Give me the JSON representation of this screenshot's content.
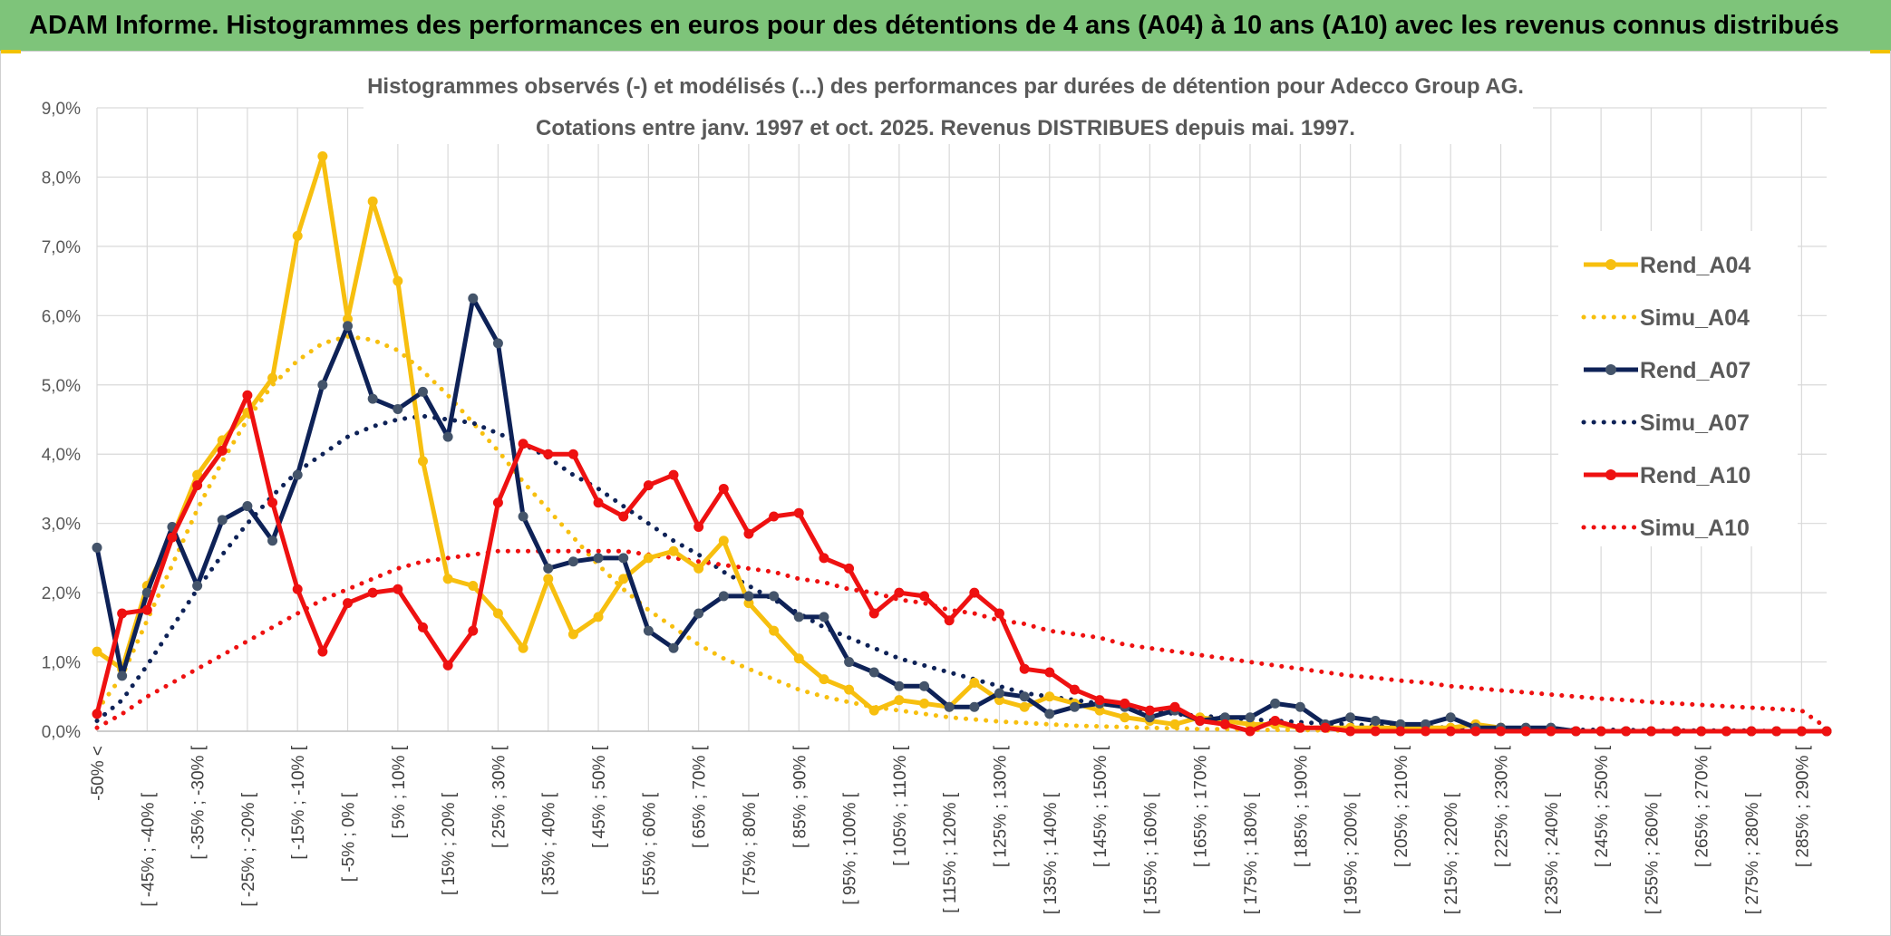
{
  "banner": {
    "title": "ADAM Informe. Histogrammes des performances en euros pour des détentions de 4 ans (A04) à 10 ans (A10) avec les revenus connus distribués"
  },
  "colors": {
    "banner_bg": "#7ec47a",
    "A04": "#f7bf0f",
    "A07": "#0e2257",
    "A10": "#ee1111",
    "grid": "#d9d9d9"
  },
  "chart_data": {
    "type": "line",
    "title": [
      "Histogrammes observés (-) et modélisés (...) des performances par durées de détention pour Adecco Group AG.",
      "Cotations entre janv. 1997 et oct. 2025. Revenus DISTRIBUES depuis mai. 1997."
    ],
    "xlabel": "",
    "ylabel": "",
    "ylim": [
      0,
      9
    ],
    "y_ticks": [
      "0,0%",
      "1,0%",
      "2,0%",
      "3,0%",
      "4,0%",
      "5,0%",
      "6,0%",
      "7,0%",
      "8,0%",
      "9,0%"
    ],
    "grid": true,
    "legend_position": "right",
    "categories": [
      "-50% <",
      "[ -50% ; -45% [",
      "[ -45% ; -40% [",
      "[ -40% ; -35% [",
      "[ -35% ; -30% [",
      "[ -30% ; -25% [",
      "[ -25% ; -20% [",
      "[ -20% ; -15% [",
      "[ -15% ; -10% [",
      "[ -10% ; -5% [",
      "[ -5% ; 0% [",
      "[ 0% ; 5% [",
      "[ 5% ; 10% [",
      "[ 10% ; 15% [",
      "[ 15% ; 20% [",
      "[ 20% ; 25% [",
      "[ 25% ; 30% [",
      "[ 30% ; 35% [",
      "[ 35% ; 40% [",
      "[ 40% ; 45% [",
      "[ 45% ; 50% [",
      "[ 50% ; 55% [",
      "[ 55% ; 60% [",
      "[ 60% ; 65% [",
      "[ 65% ; 70% [",
      "[ 70% ; 75% [",
      "[ 75% ; 80% [",
      "[ 80% ; 85% [",
      "[ 85% ; 90% [",
      "[ 90% ; 95% [",
      "[ 95% ; 100% [",
      "[ 100% ; 105% [",
      "[ 105% ; 110% [",
      "[ 110% ; 115% [",
      "[ 115% ; 120% [",
      "[ 120% ; 125% [",
      "[ 125% ; 130% [",
      "[ 130% ; 135% [",
      "[ 135% ; 140% [",
      "[ 140% ; 145% [",
      "[ 145% ; 150% [",
      "[ 150% ; 155% [",
      "[ 155% ; 160% [",
      "[ 160% ; 165% [",
      "[ 165% ; 170% [",
      "[ 170% ; 175% [",
      "[ 175% ; 180% [",
      "[ 180% ; 185% [",
      "[ 185% ; 190% [",
      "[ 190% ; 195% [",
      "[ 195% ; 200% [",
      "[ 200% ; 205% [",
      "[ 205% ; 210% [",
      "[ 210% ; 215% [",
      "[ 215% ; 220% [",
      "[ 220% ; 225% [",
      "[ 225% ; 230% [",
      "[ 230% ; 235% [",
      "[ 235% ; 240% [",
      "[ 240% ; 245% [",
      "[ 245% ; 250% [",
      "[ 250% ; 255% [",
      "[ 255% ; 260% [",
      "[ 260% ; 265% [",
      "[ 265% ; 270% [",
      "[ 270% ; 275% [",
      "[ 275% ; 280% [",
      "[ 280% ; 285% [",
      "[ 285% ; 290% [",
      "[ 290% ; 295% ["
    ],
    "shown_x_labels": [
      "-50% <",
      "[ -45% ; -40% [",
      "[ -35% ; -30% [",
      "[ -25% ; -20% [",
      "[ -15% ; -10% [",
      "[ -5% ; 0% [",
      "[ 5% ; 10% [",
      "[ 15% ; 20% [",
      "[ 25% ; 30% [",
      "[ 35% ; 40% [",
      "[ 45% ; 50% [",
      "[ 55% ; 60% [",
      "[ 65% ; 70% [",
      "[ 75% ; 80% [",
      "[ 85% ; 90% [",
      "[ 95% ; 100% [",
      "[ 105% ; 110% [",
      "[ 115% ; 120% [",
      "[ 125% ; 130% [",
      "[ 135% ; 140% [",
      "[ 145% ; 150% [",
      "[ 155% ; 160% [",
      "[ 165% ; 170% [",
      "[ 175% ; 180% [",
      "[ 185% ; 190% [",
      "[ 195% ; 200% [",
      "[ 205% ; 210% [",
      "[ 215% ; 220% [",
      "[ 225% ; 230% [",
      "[ 235% ; 240% [",
      "[ 245% ; 250% [",
      "[ 255% ; 260% [",
      "[ 265% ; 270% [",
      "[ 275% ; 280% [",
      "[ 285% ; 290% ["
    ],
    "series": [
      {
        "name": "Rend_A04",
        "style": "solid",
        "color": "#f7bf0f",
        "values": [
          1.15,
          0.9,
          2.1,
          2.8,
          3.7,
          4.2,
          4.6,
          5.1,
          7.15,
          8.3,
          5.95,
          7.65,
          6.5,
          3.9,
          2.2,
          2.1,
          1.7,
          1.2,
          2.2,
          1.4,
          1.65,
          2.2,
          2.5,
          2.6,
          2.35,
          2.75,
          1.85,
          1.45,
          1.05,
          0.75,
          0.6,
          0.3,
          0.45,
          0.4,
          0.35,
          0.7,
          0.45,
          0.35,
          0.5,
          0.4,
          0.3,
          0.2,
          0.15,
          0.1,
          0.2,
          0.15,
          0.1,
          0.1,
          0.05,
          0.05,
          0.05,
          0.05,
          0.05,
          0.05,
          0.05,
          0.1,
          0.05,
          0.0,
          0.0,
          0.0,
          0.0,
          0.0,
          0.0,
          0.0,
          0.0,
          0.0,
          0.0,
          0.0,
          0.0,
          0.0
        ]
      },
      {
        "name": "Simu_A04",
        "style": "dotted",
        "color": "#f7bf0f",
        "values": [
          0.3,
          0.8,
          1.6,
          2.4,
          3.2,
          3.9,
          4.5,
          5.0,
          5.35,
          5.6,
          5.7,
          5.65,
          5.5,
          5.2,
          4.85,
          4.45,
          4.05,
          3.6,
          3.2,
          2.8,
          2.4,
          2.05,
          1.75,
          1.5,
          1.25,
          1.05,
          0.9,
          0.75,
          0.6,
          0.5,
          0.42,
          0.35,
          0.3,
          0.25,
          0.2,
          0.17,
          0.14,
          0.12,
          0.1,
          0.08,
          0.07,
          0.06,
          0.05,
          0.04,
          0.03,
          0.03,
          0.02,
          0.02,
          0.02,
          0.01,
          0.01,
          0.01,
          0.01,
          0.01,
          0.01,
          0.0,
          0.0,
          0.0,
          0.0,
          0.0,
          0.0,
          0.0,
          0.0,
          0.0,
          0.0,
          0.0,
          0.0,
          0.0,
          0.0,
          0.0
        ]
      },
      {
        "name": "Rend_A07",
        "style": "solid",
        "color": "#0e2257",
        "values": [
          2.65,
          0.8,
          2.0,
          2.95,
          2.1,
          3.05,
          3.25,
          2.75,
          3.7,
          5.0,
          5.85,
          4.8,
          4.65,
          4.9,
          4.25,
          6.25,
          5.6,
          3.1,
          2.35,
          2.45,
          2.5,
          2.5,
          1.45,
          1.2,
          1.7,
          1.95,
          1.95,
          1.95,
          1.65,
          1.65,
          1.0,
          0.85,
          0.65,
          0.65,
          0.35,
          0.35,
          0.55,
          0.5,
          0.25,
          0.35,
          0.4,
          0.35,
          0.2,
          0.3,
          0.15,
          0.2,
          0.2,
          0.4,
          0.35,
          0.1,
          0.2,
          0.15,
          0.1,
          0.1,
          0.2,
          0.05,
          0.05,
          0.05,
          0.05,
          0.0,
          0.0,
          0.0,
          0.0,
          0.0,
          0.0,
          0.0,
          0.0,
          0.0,
          0.0,
          0.0
        ]
      },
      {
        "name": "Simu_A07",
        "style": "dotted",
        "color": "#0e2257",
        "values": [
          0.15,
          0.45,
          0.95,
          1.5,
          2.05,
          2.55,
          3.0,
          3.4,
          3.75,
          4.0,
          4.25,
          4.4,
          4.5,
          4.55,
          4.5,
          4.45,
          4.3,
          4.15,
          3.95,
          3.7,
          3.5,
          3.25,
          3.0,
          2.75,
          2.55,
          2.3,
          2.1,
          1.9,
          1.7,
          1.5,
          1.35,
          1.2,
          1.05,
          0.95,
          0.85,
          0.75,
          0.65,
          0.55,
          0.5,
          0.45,
          0.4,
          0.35,
          0.3,
          0.25,
          0.22,
          0.2,
          0.17,
          0.15,
          0.13,
          0.11,
          0.1,
          0.08,
          0.07,
          0.06,
          0.05,
          0.05,
          0.04,
          0.03,
          0.03,
          0.02,
          0.02,
          0.02,
          0.01,
          0.01,
          0.01,
          0.01,
          0.01,
          0.0,
          0.0,
          0.0
        ]
      },
      {
        "name": "Rend_A10",
        "style": "solid",
        "color": "#ee1111",
        "values": [
          0.25,
          1.7,
          1.75,
          2.8,
          3.55,
          4.05,
          4.85,
          3.3,
          2.05,
          1.15,
          1.85,
          2.0,
          2.05,
          1.5,
          0.95,
          1.45,
          3.3,
          4.15,
          4.0,
          4.0,
          3.3,
          3.1,
          3.55,
          3.7,
          2.95,
          3.5,
          2.85,
          3.1,
          3.15,
          2.5,
          2.35,
          1.7,
          2.0,
          1.95,
          1.6,
          2.0,
          1.7,
          0.9,
          0.85,
          0.6,
          0.45,
          0.4,
          0.3,
          0.35,
          0.15,
          0.1,
          0.0,
          0.15,
          0.05,
          0.05,
          0.0,
          0.0,
          0.0,
          0.0,
          0.0,
          0.0,
          0.0,
          0.0,
          0.0,
          0.0,
          0.0,
          0.0,
          0.0,
          0.0,
          0.0,
          0.0,
          0.0,
          0.0,
          0.0,
          0.0
        ]
      },
      {
        "name": "Simu_A10",
        "style": "dotted",
        "color": "#ee1111",
        "values": [
          0.05,
          0.25,
          0.5,
          0.7,
          0.9,
          1.1,
          1.3,
          1.5,
          1.7,
          1.9,
          2.05,
          2.2,
          2.35,
          2.45,
          2.5,
          2.55,
          2.6,
          2.6,
          2.6,
          2.6,
          2.6,
          2.6,
          2.55,
          2.5,
          2.45,
          2.4,
          2.35,
          2.3,
          2.2,
          2.15,
          2.05,
          2.0,
          1.9,
          1.85,
          1.75,
          1.7,
          1.6,
          1.55,
          1.45,
          1.4,
          1.35,
          1.25,
          1.2,
          1.15,
          1.1,
          1.05,
          1.0,
          0.95,
          0.9,
          0.85,
          0.8,
          0.77,
          0.73,
          0.7,
          0.65,
          0.62,
          0.59,
          0.56,
          0.53,
          0.5,
          0.47,
          0.45,
          0.42,
          0.4,
          0.38,
          0.36,
          0.34,
          0.32,
          0.3,
          0.05
        ]
      }
    ]
  }
}
